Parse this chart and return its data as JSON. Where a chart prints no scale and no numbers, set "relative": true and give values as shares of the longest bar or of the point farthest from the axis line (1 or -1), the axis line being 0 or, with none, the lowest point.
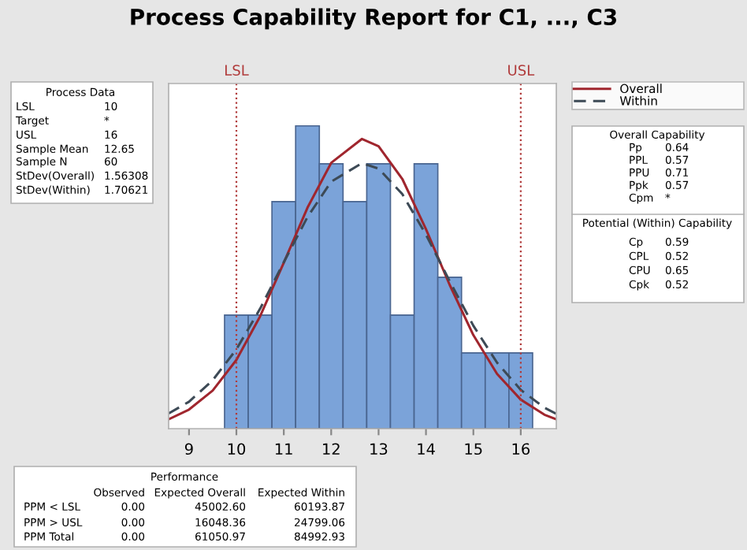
{
  "chart_data": {
    "type": "histogram",
    "title": "Process Capability Report for C1, ..., C3",
    "relative": true,
    "bins": [
      9.75,
      10.25,
      10.75,
      11.25,
      11.75,
      12.25,
      12.75,
      13.25,
      13.75,
      14.25,
      14.75,
      15.25,
      15.75,
      16.25
    ],
    "values": [
      0.375,
      0.375,
      0.75,
      1,
      0.875,
      0.75,
      0.875,
      0.375,
      0.875,
      0.5,
      0.25,
      0.25,
      0.25
    ],
    "color": "#7ba3d9",
    "series": [
      {
        "type": "line",
        "name": "Overall",
        "color": "#a0262e",
        "line_style": "solid",
        "x": [
          8.57,
          9.0,
          9.5,
          10.0,
          10.5,
          11.0,
          11.5,
          12.0,
          12.65,
          13.0,
          13.5,
          14.0,
          14.5,
          15.0,
          15.5,
          16.0,
          16.5,
          16.75
        ],
        "values": [
          0.031,
          0.063,
          0.126,
          0.227,
          0.371,
          0.548,
          0.73,
          0.878,
          0.957,
          0.933,
          0.825,
          0.659,
          0.475,
          0.309,
          0.181,
          0.096,
          0.046,
          0.031
        ]
      },
      {
        "type": "line",
        "name": "Within",
        "color": "#3d4a56",
        "line_style": "dashed",
        "x": [
          8.57,
          9.0,
          9.5,
          10.0,
          10.5,
          11.0,
          11.5,
          12.0,
          12.65,
          13.0,
          13.5,
          14.0,
          14.5,
          15.0,
          15.5,
          16.0,
          16.5,
          16.75
        ],
        "values": [
          0.05,
          0.089,
          0.16,
          0.262,
          0.396,
          0.55,
          0.699,
          0.816,
          0.877,
          0.859,
          0.775,
          0.641,
          0.487,
          0.34,
          0.218,
          0.128,
          0.069,
          0.049
        ]
      }
    ],
    "xlim": [
      8.57,
      16.75
    ],
    "xticks": [
      9,
      10,
      11,
      12,
      13,
      14,
      15,
      16
    ],
    "tick_labels": "x",
    "ref_lines": [
      {
        "axis": "x",
        "value": 10,
        "label": "LSL",
        "color": "#b03a3a",
        "line_style": "dotted"
      },
      {
        "axis": "x",
        "value": 16,
        "label": "USL",
        "color": "#b03a3a",
        "line_style": "dotted"
      }
    ],
    "legend": "top right",
    "annotations": [
      "Process Data\nLSL\t10\nTarget\t*\nUSL\t16\nSample Mean\t12.65\nSample N\t60\nStDev(Overall)\t1.56308\nStDev(Within)\t1.70621",
      "Overall Capability\nPp\t0.64\nPPL\t0.57\nPPU\t0.71\nPpk\t0.57\nCpm\t*",
      "Potential (Within) Capability\nCp\t0.59\nCPL\t0.52\nCPU\t0.65\nCpk\t0.52",
      "Performance\n\tObserved\tExpected Overall\tExpected Within\nPPM < LSL\t0.00\t45002.60\t60193.87\nPPM > USL\t0.00\t16048.36\t24799.06\nPPM Total\t0.00\t61050.97\t84992.93"
    ]
  }
}
